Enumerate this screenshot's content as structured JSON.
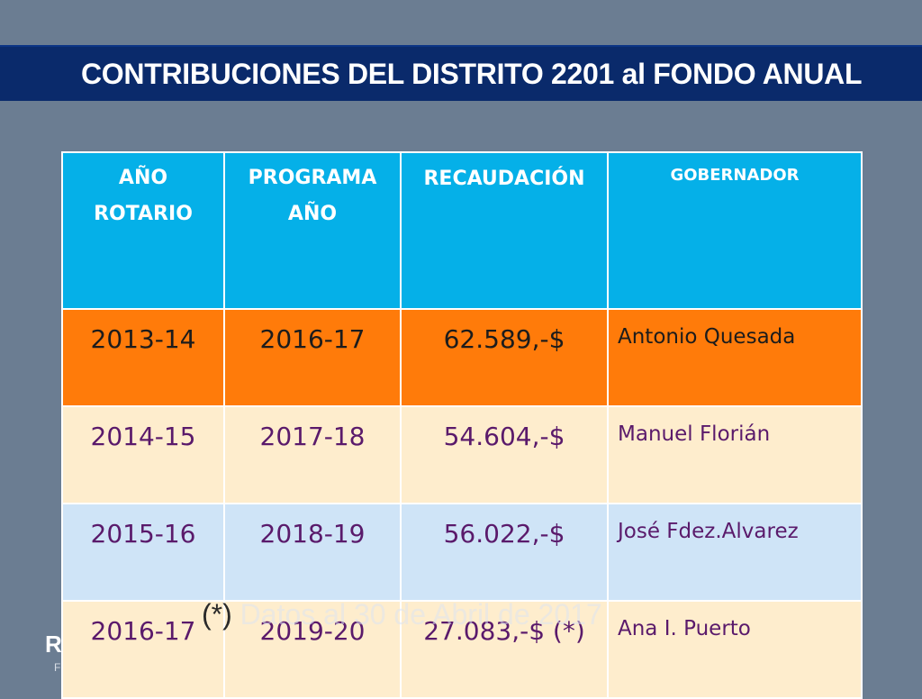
{
  "slide": {
    "title": "CONTRIBUCIONES DEL DISTRITO 2201 al FONDO ANUAL",
    "colors": {
      "band": "#0a2a6b",
      "background": "#6b7d92",
      "header": "#05b0e8",
      "highlight_row": "#ff7b0a"
    }
  },
  "table": {
    "headers": {
      "col1_line1": "AÑO",
      "col1_line2": "ROTARIO",
      "col2_line1": "PROGRAMA",
      "col2_line2": "AÑO",
      "col3": "RECAUDACIÓN",
      "col4": "GOBERNADOR"
    },
    "rows": [
      {
        "year": "2013-14",
        "program": "2016-17",
        "amount": "62.589,-$",
        "governor": "Antonio Quesada"
      },
      {
        "year": "2014-15",
        "program": "2017-18",
        "amount": "54.604,-$",
        "governor": "Manuel Florián"
      },
      {
        "year": "2015-16",
        "program": "2018-19",
        "amount": "56.022,-$",
        "governor": "José Fdez.Alvarez"
      },
      {
        "year": "2016-17",
        "program": "2019-20",
        "amount": "27.083,-$ (*)",
        "governor": "Ana I. Puerto"
      }
    ]
  },
  "footnote": {
    "marker": "(*)",
    "text": "Datos al 30 de Abril de 2017"
  },
  "logo": {
    "text": "R",
    "subtext": "F"
  }
}
